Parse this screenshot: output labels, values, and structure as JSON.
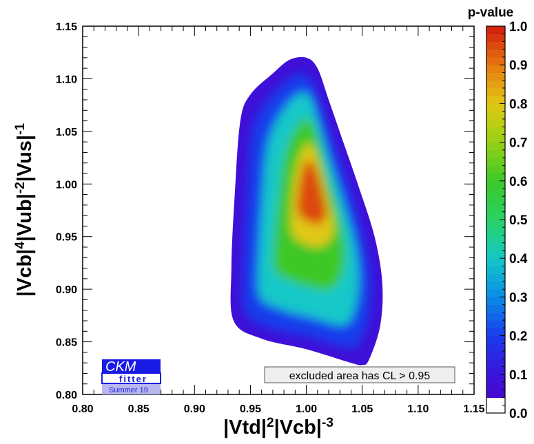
{
  "chart_data": {
    "type": "heatmap",
    "xlabel": {
      "parts": [
        {
          "t": "|Vtd|"
        },
        {
          "t": "2",
          "sup": true
        },
        {
          "t": "|Vcb|"
        },
        {
          "t": "-3",
          "sup": true
        }
      ]
    },
    "ylabel": {
      "parts": [
        {
          "t": "|Vcb|"
        },
        {
          "t": "4",
          "sup": true
        },
        {
          "t": "|Vub|"
        },
        {
          "t": "-2",
          "sup": true
        },
        {
          "t": "|Vus|"
        },
        {
          "t": "-1",
          "sup": true
        }
      ]
    },
    "xlim": [
      0.8,
      1.15
    ],
    "ylim": [
      0.8,
      1.15
    ],
    "xticks": [
      "0.80",
      "0.85",
      "0.90",
      "0.95",
      "1.00",
      "1.05",
      "1.10",
      "1.15"
    ],
    "yticks": [
      "0.80",
      "0.85",
      "0.90",
      "0.95",
      "1.00",
      "1.05",
      "1.10",
      "1.15"
    ],
    "colorbar": {
      "title": "p-value",
      "ticks": [
        "0.0",
        "0.1",
        "0.2",
        "0.3",
        "0.4",
        "0.5",
        "0.6",
        "0.7",
        "0.8",
        "0.9",
        "1.0"
      ],
      "range": [
        0,
        1
      ],
      "excluded_below": 0.05
    },
    "contour_levels": [
      {
        "p": 0.05,
        "points": [
          [
            0.935,
            0.87
          ],
          [
            0.933,
            0.92
          ],
          [
            0.936,
            0.99
          ],
          [
            0.941,
            1.06
          ],
          [
            0.95,
            1.085
          ],
          [
            0.97,
            1.105
          ],
          [
            0.985,
            1.118
          ],
          [
            1.0,
            1.12
          ],
          [
            1.01,
            1.11
          ],
          [
            1.02,
            1.08
          ],
          [
            1.033,
            1.04
          ],
          [
            1.046,
            1.0
          ],
          [
            1.061,
            0.95
          ],
          [
            1.068,
            0.905
          ],
          [
            1.066,
            0.865
          ],
          [
            1.056,
            0.833
          ],
          [
            1.05,
            0.828
          ],
          [
            1.04,
            0.83
          ],
          [
            1.0,
            0.843
          ],
          [
            0.96,
            0.853
          ]
        ]
      },
      {
        "p": 0.2,
        "points": [
          [
            0.945,
            0.88
          ],
          [
            0.944,
            0.93
          ],
          [
            0.947,
            0.99
          ],
          [
            0.951,
            1.048
          ],
          [
            0.962,
            1.075
          ],
          [
            0.98,
            1.096
          ],
          [
            0.995,
            1.105
          ],
          [
            1.006,
            1.095
          ],
          [
            1.015,
            1.07
          ],
          [
            1.027,
            1.03
          ],
          [
            1.04,
            0.99
          ],
          [
            1.052,
            0.945
          ],
          [
            1.058,
            0.905
          ],
          [
            1.055,
            0.87
          ],
          [
            1.046,
            0.847
          ],
          [
            1.035,
            0.845
          ],
          [
            1.0,
            0.855
          ],
          [
            0.965,
            0.864
          ]
        ]
      },
      {
        "p": 0.4,
        "points": [
          [
            0.958,
            0.895
          ],
          [
            0.958,
            0.94
          ],
          [
            0.961,
            0.99
          ],
          [
            0.965,
            1.035
          ],
          [
            0.975,
            1.063
          ],
          [
            0.99,
            1.083
          ],
          [
            1.002,
            1.085
          ],
          [
            1.01,
            1.062
          ],
          [
            1.02,
            1.025
          ],
          [
            1.032,
            0.985
          ],
          [
            1.043,
            0.945
          ],
          [
            1.047,
            0.91
          ],
          [
            1.043,
            0.88
          ],
          [
            1.033,
            0.866
          ],
          [
            1.005,
            0.873
          ],
          [
            0.975,
            0.882
          ]
        ]
      },
      {
        "p": 0.6,
        "points": [
          [
            0.971,
            0.92
          ],
          [
            0.972,
            0.955
          ],
          [
            0.976,
            0.995
          ],
          [
            0.981,
            1.03
          ],
          [
            0.992,
            1.055
          ],
          [
            1.002,
            1.062
          ],
          [
            1.01,
            1.045
          ],
          [
            1.018,
            1.01
          ],
          [
            1.028,
            0.975
          ],
          [
            1.034,
            0.945
          ],
          [
            1.033,
            0.918
          ],
          [
            1.022,
            0.9
          ],
          [
            1.0,
            0.903
          ],
          [
            0.982,
            0.91
          ]
        ]
      },
      {
        "p": 0.8,
        "points": [
          [
            0.987,
            0.955
          ],
          [
            0.987,
            0.985
          ],
          [
            0.991,
            1.015
          ],
          [
            0.998,
            1.035
          ],
          [
            1.004,
            1.038
          ],
          [
            1.011,
            1.02
          ],
          [
            1.018,
            0.99
          ],
          [
            1.024,
            0.965
          ],
          [
            1.022,
            0.948
          ],
          [
            1.01,
            0.94
          ],
          [
            0.995,
            0.945
          ]
        ]
      },
      {
        "p": 0.95,
        "points": [
          [
            0.992,
            0.975
          ],
          [
            0.994,
            1.0
          ],
          [
            0.998,
            1.018
          ],
          [
            1.004,
            1.022
          ],
          [
            1.01,
            1.01
          ],
          [
            1.015,
            0.99
          ],
          [
            1.018,
            0.972
          ],
          [
            1.012,
            0.962
          ],
          [
            1.0,
            0.965
          ]
        ]
      }
    ],
    "logo": {
      "line1": "CKM",
      "line2": "fitter",
      "line3": "Summer 19"
    },
    "legend_note": "excluded area has CL > 0.95",
    "colors": {
      "logo_blue": "#1a1ae6",
      "logo_light": "#b8b8ee",
      "note_bg": "#eeeeee",
      "frame": "#000000"
    }
  }
}
